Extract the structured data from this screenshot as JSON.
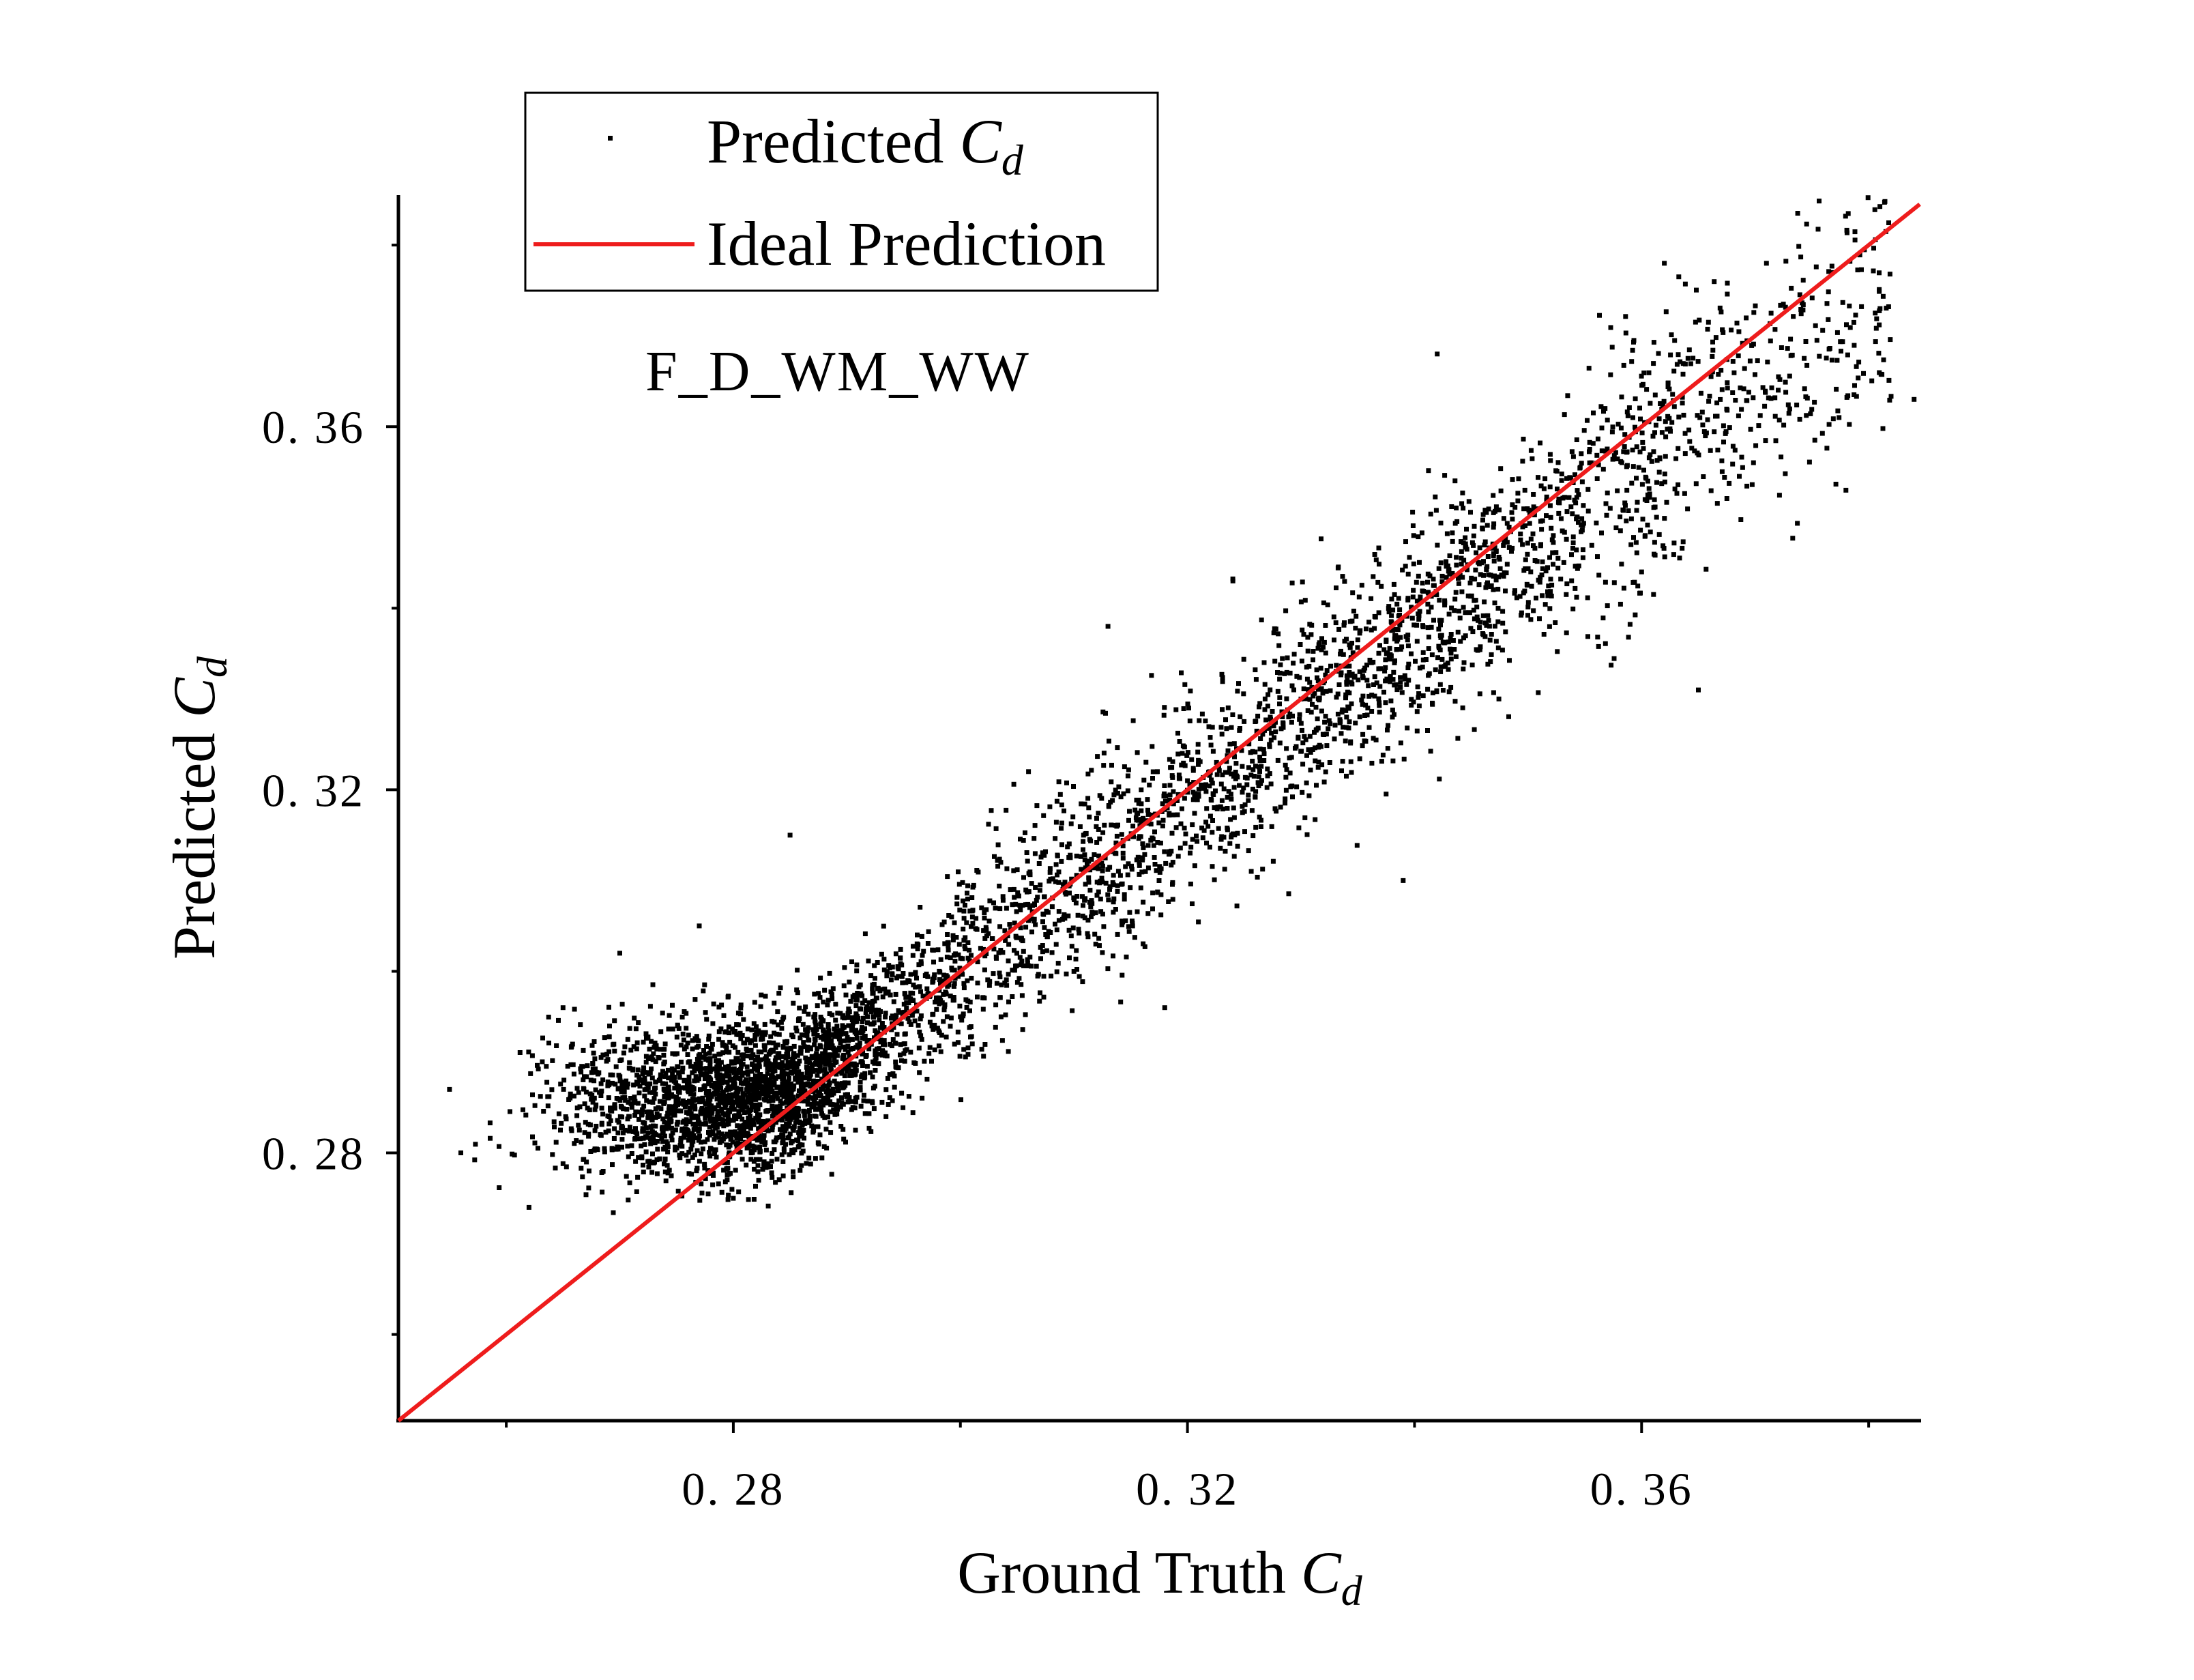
{
  "chart_data": {
    "type": "scatter",
    "title": "",
    "annotation": "F_D_WM_WW",
    "xlabel_prefix": "Ground Truth ",
    "ylabel_prefix": "Predicted ",
    "symbol_main": "C",
    "symbol_sub": "d",
    "xlim": [
      0.2505,
      0.3845
    ],
    "ylim": [
      0.2505,
      0.3855
    ],
    "xticks": [
      0.28,
      0.32,
      0.36
    ],
    "xtick_labels": [
      "0. 28",
      "0. 32",
      "0. 36"
    ],
    "yticks": [
      0.28,
      0.32,
      0.36
    ],
    "ytick_labels": [
      "0. 28",
      "0. 32",
      "0. 36"
    ],
    "x_minor_ticks": [
      0.26,
      0.3,
      0.34,
      0.38
    ],
    "y_minor_ticks": [
      0.26,
      0.3,
      0.34,
      0.38
    ],
    "legend": {
      "position": "top-left",
      "entries": [
        {
          "label_prefix": "Predicted ",
          "label_symbol": "C",
          "label_sub": "d",
          "marker": "square"
        },
        {
          "label": "Ideal Prediction",
          "marker": "line"
        }
      ]
    },
    "series": [
      {
        "name": "Predicted C_d",
        "kind": "points",
        "color": "#000000",
        "approx_count": 5000,
        "description_points": [
          {
            "x": 0.255,
            "y": 0.287
          },
          {
            "x": 0.256,
            "y": 0.28
          },
          {
            "x": 0.262,
            "y": 0.274
          },
          {
            "x": 0.265,
            "y": 0.296
          },
          {
            "x": 0.27,
            "y": 0.302
          },
          {
            "x": 0.274,
            "y": 0.292
          },
          {
            "x": 0.277,
            "y": 0.305
          },
          {
            "x": 0.28,
            "y": 0.275
          },
          {
            "x": 0.285,
            "y": 0.315
          },
          {
            "x": 0.29,
            "y": 0.289
          },
          {
            "x": 0.3,
            "y": 0.295
          },
          {
            "x": 0.306,
            "y": 0.322
          },
          {
            "x": 0.31,
            "y": 0.3
          },
          {
            "x": 0.313,
            "y": 0.338
          },
          {
            "x": 0.318,
            "y": 0.296
          },
          {
            "x": 0.32,
            "y": 0.321
          },
          {
            "x": 0.324,
            "y": 0.343
          },
          {
            "x": 0.33,
            "y": 0.33
          },
          {
            "x": 0.339,
            "y": 0.31
          },
          {
            "x": 0.342,
            "y": 0.368
          },
          {
            "x": 0.352,
            "y": 0.35
          },
          {
            "x": 0.36,
            "y": 0.344
          },
          {
            "x": 0.362,
            "y": 0.378
          },
          {
            "x": 0.365,
            "y": 0.331
          },
          {
            "x": 0.371,
            "y": 0.378
          },
          {
            "x": 0.378,
            "y": 0.353
          },
          {
            "x": 0.381,
            "y": 0.373
          },
          {
            "x": 0.384,
            "y": 0.363
          }
        ]
      },
      {
        "name": "Ideal Prediction",
        "kind": "line",
        "color": "#ee1c1c",
        "x": [
          0.2505,
          0.3845
        ],
        "y": [
          0.2505,
          0.3845
        ]
      }
    ]
  }
}
